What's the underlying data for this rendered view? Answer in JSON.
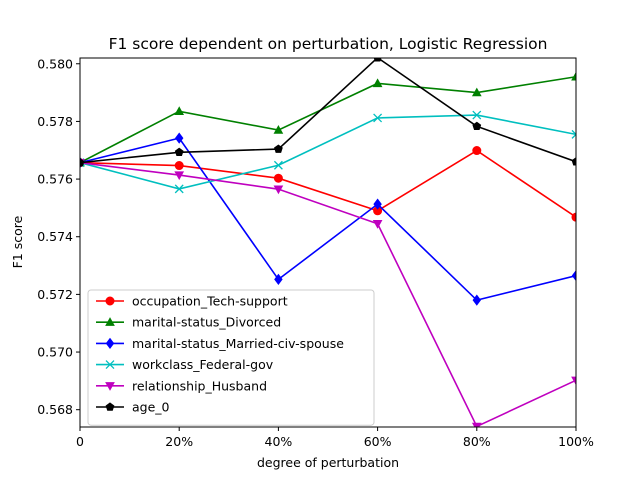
{
  "chart_data": {
    "type": "line",
    "title": "F1 score dependent on perturbation, Logistic Regression",
    "xlabel": "degree of perturbation",
    "ylabel": "F1 score",
    "x": [
      0,
      20,
      40,
      60,
      80,
      100
    ],
    "x_tick_labels": [
      "0",
      "20%",
      "40%",
      "60%",
      "80%",
      "100%"
    ],
    "xlim": [
      0,
      100
    ],
    "ylim": [
      0.5674,
      0.5802
    ],
    "y_ticks": [
      0.568,
      0.57,
      0.572,
      0.574,
      0.576,
      0.578,
      0.58
    ],
    "y_tick_labels": [
      "0.568",
      "0.570",
      "0.572",
      "0.574",
      "0.576",
      "0.578",
      "0.580"
    ],
    "grid": false,
    "legend_position": "lower-left",
    "series": [
      {
        "name": "occupation_Tech-support",
        "color": "#ff0000",
        "marker": "circle",
        "values": [
          0.57657,
          0.57647,
          0.57603,
          0.5749,
          0.57699,
          0.57468
        ]
      },
      {
        "name": "marital-status_Divorced",
        "color": "#008000",
        "marker": "triangle-up",
        "values": [
          0.57657,
          0.57835,
          0.5777,
          0.57932,
          0.579,
          0.57955
        ]
      },
      {
        "name": "marital-status_Married-civ-spouse",
        "color": "#0000ff",
        "marker": "diamond",
        "values": [
          0.57657,
          0.57742,
          0.57252,
          0.57513,
          0.5718,
          0.57265
        ]
      },
      {
        "name": "workclass_Federal-gov",
        "color": "#00bfbf",
        "marker": "x",
        "values": [
          0.57657,
          0.57566,
          0.57648,
          0.57812,
          0.57822,
          0.57755
        ]
      },
      {
        "name": "relationship_Husband",
        "color": "#bf00bf",
        "marker": "triangle-down",
        "values": [
          0.57657,
          0.57614,
          0.57565,
          0.57445,
          0.56742,
          0.56902
        ]
      },
      {
        "name": "age_0",
        "color": "#000000",
        "marker": "pentagon",
        "values": [
          0.57657,
          0.57693,
          0.57704,
          0.58021,
          0.57783,
          0.5766
        ]
      }
    ]
  }
}
